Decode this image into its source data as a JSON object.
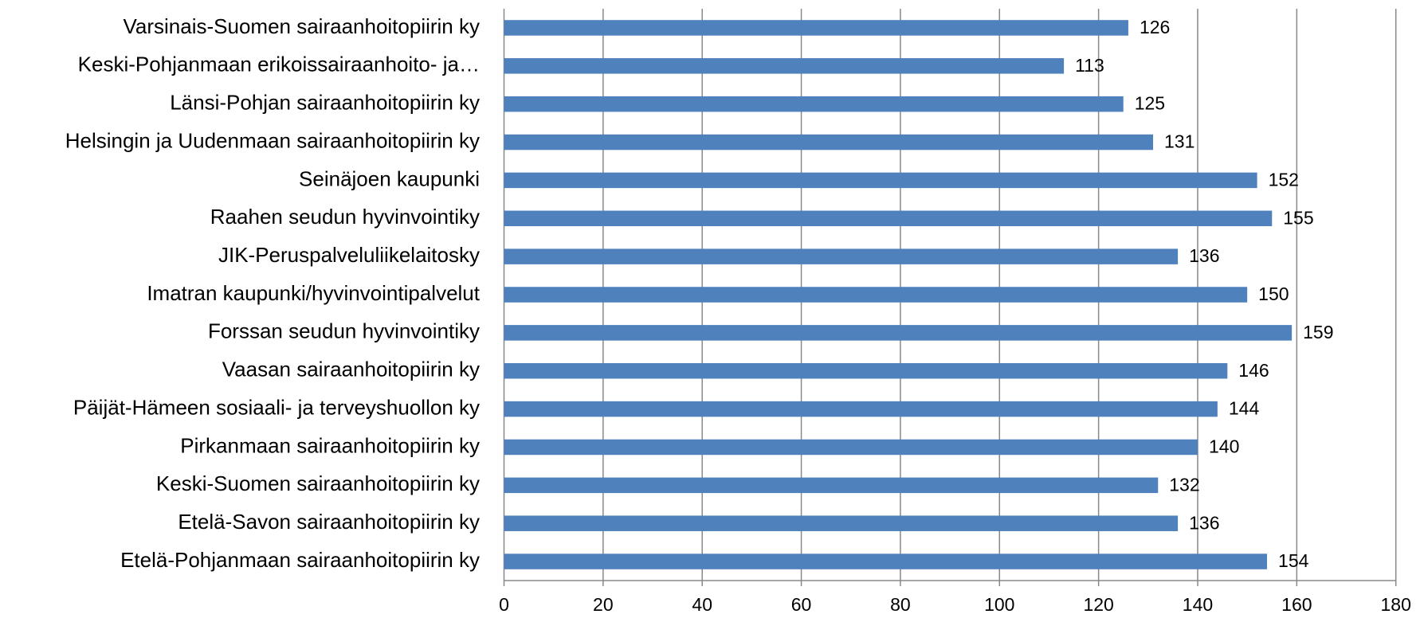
{
  "chart_data": {
    "type": "bar",
    "orientation": "horizontal",
    "categories": [
      "Varsinais-Suomen sairaanhoitopiirin ky",
      "Keski-Pohjanmaan erikoissairaanhoito- ja…",
      "Länsi-Pohjan sairaanhoitopiirin ky",
      "Helsingin ja Uudenmaan sairaanhoitopiirin ky",
      "Seinäjoen kaupunki",
      "Raahen seudun hyvinvointiky",
      "JIK-Peruspalveluliikelaitosky",
      "Imatran kaupunki/hyvinvointipalvelut",
      "Forssan seudun hyvinvointiky",
      "Vaasan sairaanhoitopiirin ky",
      "Päijät-Hämeen sosiaali- ja terveyshuollon ky",
      "Pirkanmaan sairaanhoitopiirin ky",
      "Keski-Suomen sairaanhoitopiirin ky",
      "Etelä-Savon sairaanhoitopiirin ky",
      "Etelä-Pohjanmaan sairaanhoitopiirin ky"
    ],
    "values": [
      126,
      113,
      125,
      131,
      152,
      155,
      136,
      150,
      159,
      146,
      144,
      140,
      132,
      136,
      154
    ],
    "color": "#4f81bd",
    "xlim": [
      0,
      180
    ],
    "xticks": [
      0,
      20,
      40,
      60,
      80,
      100,
      120,
      140,
      160,
      180
    ],
    "grid": true
  }
}
